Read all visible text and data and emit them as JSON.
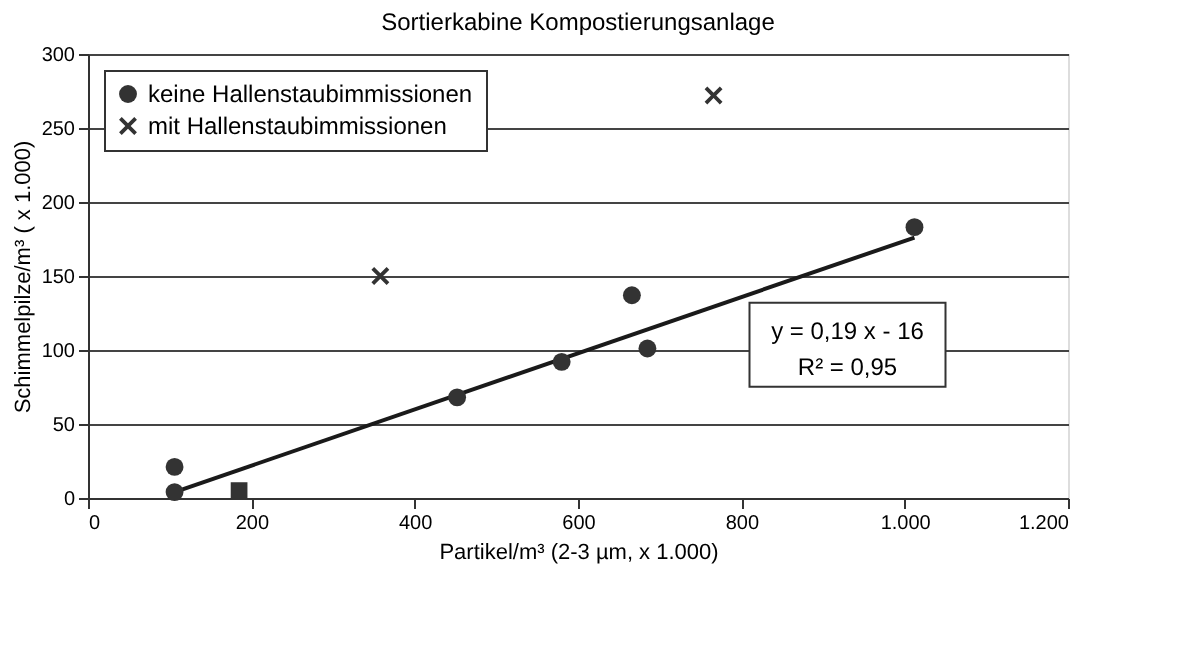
{
  "chart_data": {
    "type": "scatter",
    "title": "Sortierkabine Kompostierungsanlage",
    "xlabel": "Partikel/m³ (2-3 µm, x 1.000)",
    "ylabel": "Schimmelpilze/m³ ( x 1.000)",
    "series": [
      {
        "name": "keine Hallenstaubimmissionen",
        "color": "#333333",
        "marker": "circle",
        "x": [
          106,
          106,
          452,
          580,
          666,
          685,
          1012
        ],
        "values": [
          21,
          4,
          68,
          92,
          137,
          101,
          183
        ]
      },
      {
        "name": "mit Hallenstaubimmissionen",
        "color": "#333333",
        "marker": "cross",
        "x": [
          358,
          766
        ],
        "values": [
          150,
          272
        ]
      },
      {
        "color": "#333333",
        "marker": "square",
        "x": [
          185
        ],
        "values": [
          5
        ]
      },
      {
        "type": "line",
        "color": "#1a1a1a",
        "marker": "none",
        "line_style": "solid",
        "x": [
          106,
          1012
        ],
        "values": [
          4,
          176
        ]
      }
    ],
    "xlim": [
      0,
      1200
    ],
    "xticks": [
      0,
      200,
      400,
      600,
      800,
      {
        "value": 1000,
        "label": "1.000"
      },
      {
        "value": 1200,
        "label": "1.200"
      }
    ],
    "ylim": [
      0,
      300
    ],
    "yticks": [
      0,
      50,
      100,
      150,
      200,
      250,
      300
    ],
    "grid": "y",
    "legend": "top left",
    "annotations": [
      "y = 0,19 x - 16",
      "R² = 0,95"
    ]
  }
}
